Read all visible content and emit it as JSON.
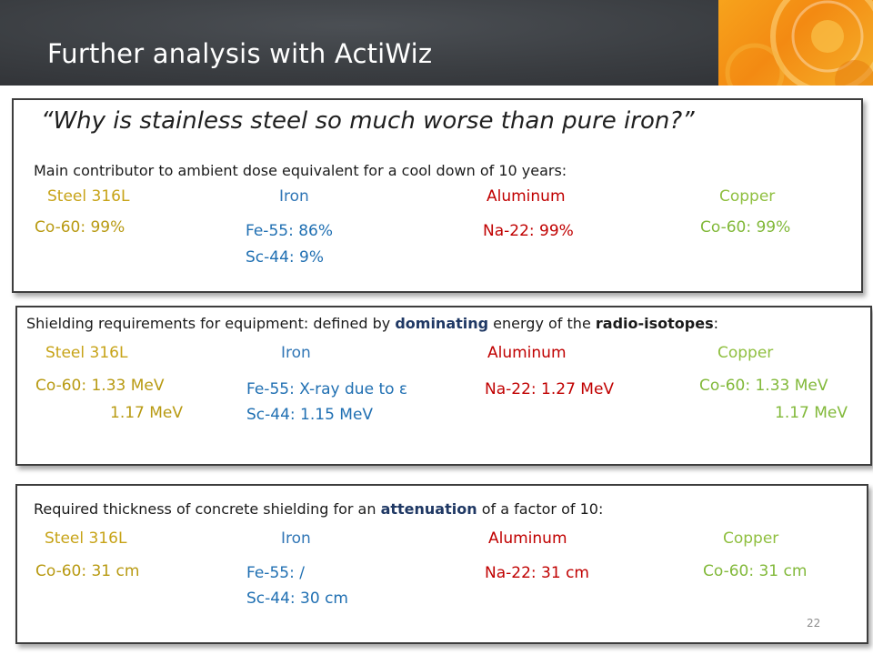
{
  "slide": {
    "title": "Further analysis with ActiWiz",
    "question": "“Why is stainless steel so much worse than pure iron?”",
    "page_number": "22"
  },
  "materials": {
    "steel": "Steel 316L",
    "iron": "Iron",
    "aluminum": "Aluminum",
    "copper": "Copper"
  },
  "section1": {
    "caption": "Main contributor to ambient dose equivalent for a cool down of 10 years:",
    "steel": [
      "Co-60:  99%"
    ],
    "iron": [
      "Fe-55:  86%",
      "Sc-44:     9%"
    ],
    "aluminum": [
      "Na-22:  99%"
    ],
    "copper": [
      "Co-60:  99%"
    ]
  },
  "section2": {
    "caption_pre": "Shielding requirements for equipment: defined by ",
    "caption_b1": "dominating",
    "caption_mid": " energy of the ",
    "caption_b2": "radio-isotopes",
    "caption_post": ":",
    "steel": [
      "Co-60:  1.33 MeV",
      "1.17 MeV"
    ],
    "iron": [
      "Fe-55:  X-ray due to ε",
      "Sc-44:  1.15 MeV"
    ],
    "aluminum": [
      "Na-22:  1.27 MeV"
    ],
    "copper": [
      "Co-60:  1.33 MeV",
      "1.17 MeV"
    ]
  },
  "section3": {
    "caption_pre": "Required thickness of concrete shielding for an ",
    "caption_b": "attenuation",
    "caption_post": " of a factor of 10:",
    "steel": [
      "Co-60:  31 cm"
    ],
    "iron": [
      "Fe-55:  /",
      "Sc-44:  30 cm"
    ],
    "aluminum": [
      "Na-22:  31 cm"
    ],
    "copper": [
      "Co-60:  31 cm"
    ]
  },
  "colors": {
    "steel": "#c7a317",
    "iron": "#2f75b5",
    "aluminum": "#c00000",
    "copper": "#8fbf3f",
    "header_bg": "#3a3d41",
    "accent_orange": "#f38a12"
  }
}
